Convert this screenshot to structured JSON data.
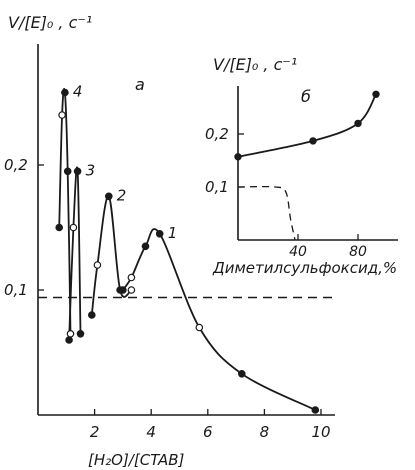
{
  "colors": {
    "ink": "#1a1a1a",
    "background": "#ffffff"
  },
  "chart_data": [
    {
      "type": "line",
      "panel_label": "а",
      "ylabel": "V/[E]₀ , c⁻¹",
      "xlabel": "[H₂O]/[CTAB]",
      "xlim": [
        0,
        10.5
      ],
      "ylim": [
        0,
        0.27
      ],
      "xticks": [
        2,
        4,
        6,
        8,
        10
      ],
      "yticks": [
        0.1,
        0.2
      ],
      "ytick_labels": [
        "0,1",
        "0,2"
      ],
      "reference_line": {
        "y": 0.094,
        "style": "dashed"
      },
      "series": [
        {
          "name": "1",
          "x": [
            3.0,
            3.3,
            3.8,
            4.3,
            5.7,
            7.2,
            9.8
          ],
          "y": [
            0.1,
            0.11,
            0.135,
            0.145,
            0.07,
            0.033,
            0.004
          ]
        },
        {
          "name": "2",
          "x": [
            1.9,
            2.1,
            2.5,
            2.9,
            3.3
          ],
          "y": [
            0.08,
            0.12,
            0.175,
            0.1,
            0.1
          ]
        },
        {
          "name": "3",
          "x": [
            1.1,
            1.25,
            1.4,
            1.5
          ],
          "y": [
            0.06,
            0.15,
            0.195,
            0.065
          ]
        },
        {
          "name": "4",
          "x": [
            0.75,
            0.85,
            0.95,
            1.05,
            1.15
          ],
          "y": [
            0.15,
            0.24,
            0.258,
            0.195,
            0.065
          ]
        }
      ]
    },
    {
      "type": "line",
      "panel_label": "б",
      "ylabel": "V/[E]₀ , c⁻¹",
      "xlabel": "Диметилсульфоксид,%",
      "xlim": [
        0,
        100
      ],
      "ylim": [
        0,
        0.3
      ],
      "xticks": [
        40,
        80
      ],
      "yticks": [
        0.1,
        0.2
      ],
      "ytick_labels": [
        "0,1",
        "0,2"
      ],
      "series": [
        {
          "name": "solid",
          "x": [
            0,
            50,
            80,
            92
          ],
          "y": [
            0.157,
            0.187,
            0.22,
            0.275
          ]
        },
        {
          "name": "dashed",
          "style": "dashed",
          "x": [
            0,
            25,
            32,
            35,
            38
          ],
          "y": [
            0.1,
            0.1,
            0.09,
            0.04,
            0.0
          ]
        }
      ]
    }
  ]
}
